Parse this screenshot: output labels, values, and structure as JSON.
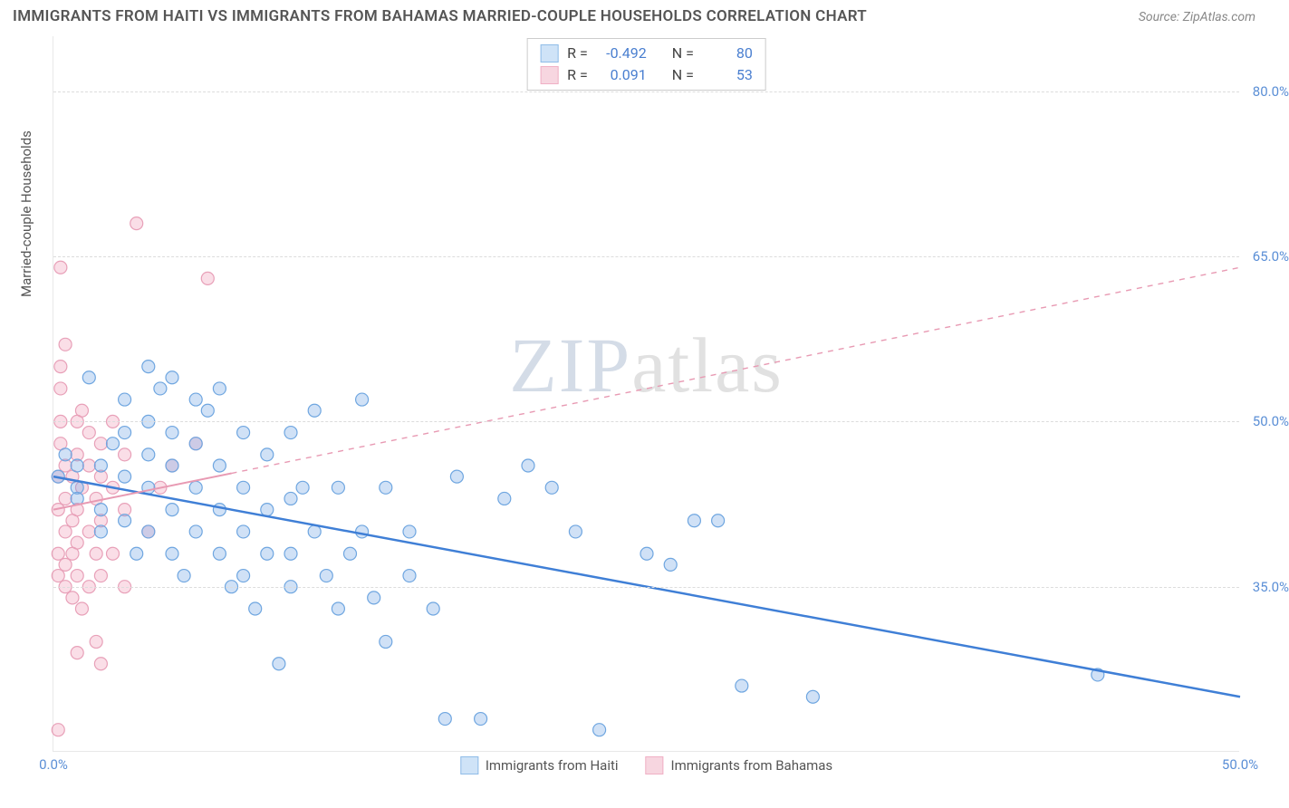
{
  "title": "IMMIGRANTS FROM HAITI VS IMMIGRANTS FROM BAHAMAS MARRIED-COUPLE HOUSEHOLDS CORRELATION CHART",
  "source": "Source: ZipAtlas.com",
  "yaxis_title": "Married-couple Households",
  "watermark_a": "ZIP",
  "watermark_b": "atlas",
  "chart": {
    "type": "scatter",
    "xlim": [
      0,
      50
    ],
    "ylim": [
      20,
      85
    ],
    "xticks": [
      {
        "v": 0,
        "label": "0.0%"
      },
      {
        "v": 50,
        "label": "50.0%"
      }
    ],
    "yticks": [
      {
        "v": 35,
        "label": "35.0%"
      },
      {
        "v": 50,
        "label": "50.0%"
      },
      {
        "v": 65,
        "label": "65.0%"
      },
      {
        "v": 80,
        "label": "80.0%"
      }
    ],
    "background_color": "#ffffff",
    "grid_color": "#dcdcdc",
    "marker_radius": 7,
    "series": [
      {
        "name": "Immigrants from Haiti",
        "color_fill": "rgba(120,170,230,0.35)",
        "color_stroke": "#6fa6e0",
        "swatch_fill": "#cfe3f7",
        "swatch_stroke": "#8fbce8",
        "R": "-0.492",
        "N": "80",
        "trend": {
          "x1": 0,
          "y1": 45,
          "x2": 50,
          "y2": 25,
          "stroke": "#3f7fd6",
          "width": 2.5,
          "dash": "none"
        },
        "points": [
          [
            0.2,
            45
          ],
          [
            0.5,
            47
          ],
          [
            1,
            44
          ],
          [
            1,
            46
          ],
          [
            1,
            43
          ],
          [
            1.5,
            54
          ],
          [
            2,
            46
          ],
          [
            2,
            42
          ],
          [
            2,
            40
          ],
          [
            2.5,
            48
          ],
          [
            3,
            52
          ],
          [
            3,
            49
          ],
          [
            3,
            45
          ],
          [
            3,
            41
          ],
          [
            3.5,
            38
          ],
          [
            4,
            55
          ],
          [
            4,
            50
          ],
          [
            4,
            47
          ],
          [
            4,
            44
          ],
          [
            4,
            40
          ],
          [
            4.5,
            53
          ],
          [
            5,
            54
          ],
          [
            5,
            49
          ],
          [
            5,
            46
          ],
          [
            5,
            42
          ],
          [
            5,
            38
          ],
          [
            5.5,
            36
          ],
          [
            6,
            52
          ],
          [
            6,
            48
          ],
          [
            6,
            44
          ],
          [
            6,
            40
          ],
          [
            6.5,
            51
          ],
          [
            7,
            53
          ],
          [
            7,
            46
          ],
          [
            7,
            42
          ],
          [
            7,
            38
          ],
          [
            7.5,
            35
          ],
          [
            8,
            49
          ],
          [
            8,
            44
          ],
          [
            8,
            40
          ],
          [
            8,
            36
          ],
          [
            8.5,
            33
          ],
          [
            9,
            47
          ],
          [
            9,
            42
          ],
          [
            9,
            38
          ],
          [
            9.5,
            28
          ],
          [
            10,
            49
          ],
          [
            10,
            43
          ],
          [
            10,
            38
          ],
          [
            10,
            35
          ],
          [
            10.5,
            44
          ],
          [
            11,
            51
          ],
          [
            11,
            40
          ],
          [
            11.5,
            36
          ],
          [
            12,
            44
          ],
          [
            12,
            33
          ],
          [
            12.5,
            38
          ],
          [
            13,
            52
          ],
          [
            13,
            40
          ],
          [
            13.5,
            34
          ],
          [
            14,
            44
          ],
          [
            14,
            30
          ],
          [
            15,
            40
          ],
          [
            15,
            36
          ],
          [
            16,
            33
          ],
          [
            16.5,
            23
          ],
          [
            17,
            45
          ],
          [
            18,
            23
          ],
          [
            19,
            43
          ],
          [
            20,
            46
          ],
          [
            21,
            44
          ],
          [
            22,
            40
          ],
          [
            23,
            22
          ],
          [
            25,
            38
          ],
          [
            26,
            37
          ],
          [
            27,
            41
          ],
          [
            28,
            41
          ],
          [
            29,
            26
          ],
          [
            32,
            25
          ],
          [
            44,
            27
          ]
        ]
      },
      {
        "name": "Immigrants from Bahamas",
        "color_fill": "rgba(240,160,185,0.35)",
        "color_stroke": "#e8a0b8",
        "swatch_fill": "#f7d6e0",
        "swatch_stroke": "#f0b0c5",
        "R": "0.091",
        "N": "53",
        "trend": {
          "x1": 0,
          "y1": 42,
          "x2": 50,
          "y2": 64,
          "stroke": "#e89ab3",
          "width": 2,
          "dash": "6,6",
          "solid_until_x": 7.5
        },
        "points": [
          [
            0.2,
            22
          ],
          [
            0.2,
            36
          ],
          [
            0.2,
            38
          ],
          [
            0.2,
            42
          ],
          [
            0.2,
            45
          ],
          [
            0.3,
            48
          ],
          [
            0.3,
            50
          ],
          [
            0.3,
            53
          ],
          [
            0.3,
            55
          ],
          [
            0.3,
            64
          ],
          [
            0.5,
            35
          ],
          [
            0.5,
            37
          ],
          [
            0.5,
            40
          ],
          [
            0.5,
            43
          ],
          [
            0.5,
            46
          ],
          [
            0.5,
            57
          ],
          [
            0.8,
            34
          ],
          [
            0.8,
            38
          ],
          [
            0.8,
            41
          ],
          [
            0.8,
            45
          ],
          [
            1,
            29
          ],
          [
            1,
            36
          ],
          [
            1,
            39
          ],
          [
            1,
            42
          ],
          [
            1,
            47
          ],
          [
            1,
            50
          ],
          [
            1.2,
            33
          ],
          [
            1.2,
            44
          ],
          [
            1.2,
            51
          ],
          [
            1.5,
            35
          ],
          [
            1.5,
            40
          ],
          [
            1.5,
            46
          ],
          [
            1.5,
            49
          ],
          [
            1.8,
            30
          ],
          [
            1.8,
            38
          ],
          [
            1.8,
            43
          ],
          [
            2,
            28
          ],
          [
            2,
            36
          ],
          [
            2,
            41
          ],
          [
            2,
            45
          ],
          [
            2,
            48
          ],
          [
            2.5,
            38
          ],
          [
            2.5,
            44
          ],
          [
            2.5,
            50
          ],
          [
            3,
            35
          ],
          [
            3,
            42
          ],
          [
            3,
            47
          ],
          [
            3.5,
            68
          ],
          [
            4,
            40
          ],
          [
            4.5,
            44
          ],
          [
            5,
            46
          ],
          [
            6,
            48
          ],
          [
            6.5,
            63
          ]
        ]
      }
    ]
  },
  "legend": {
    "R_label": "R =",
    "N_label": "N ="
  }
}
